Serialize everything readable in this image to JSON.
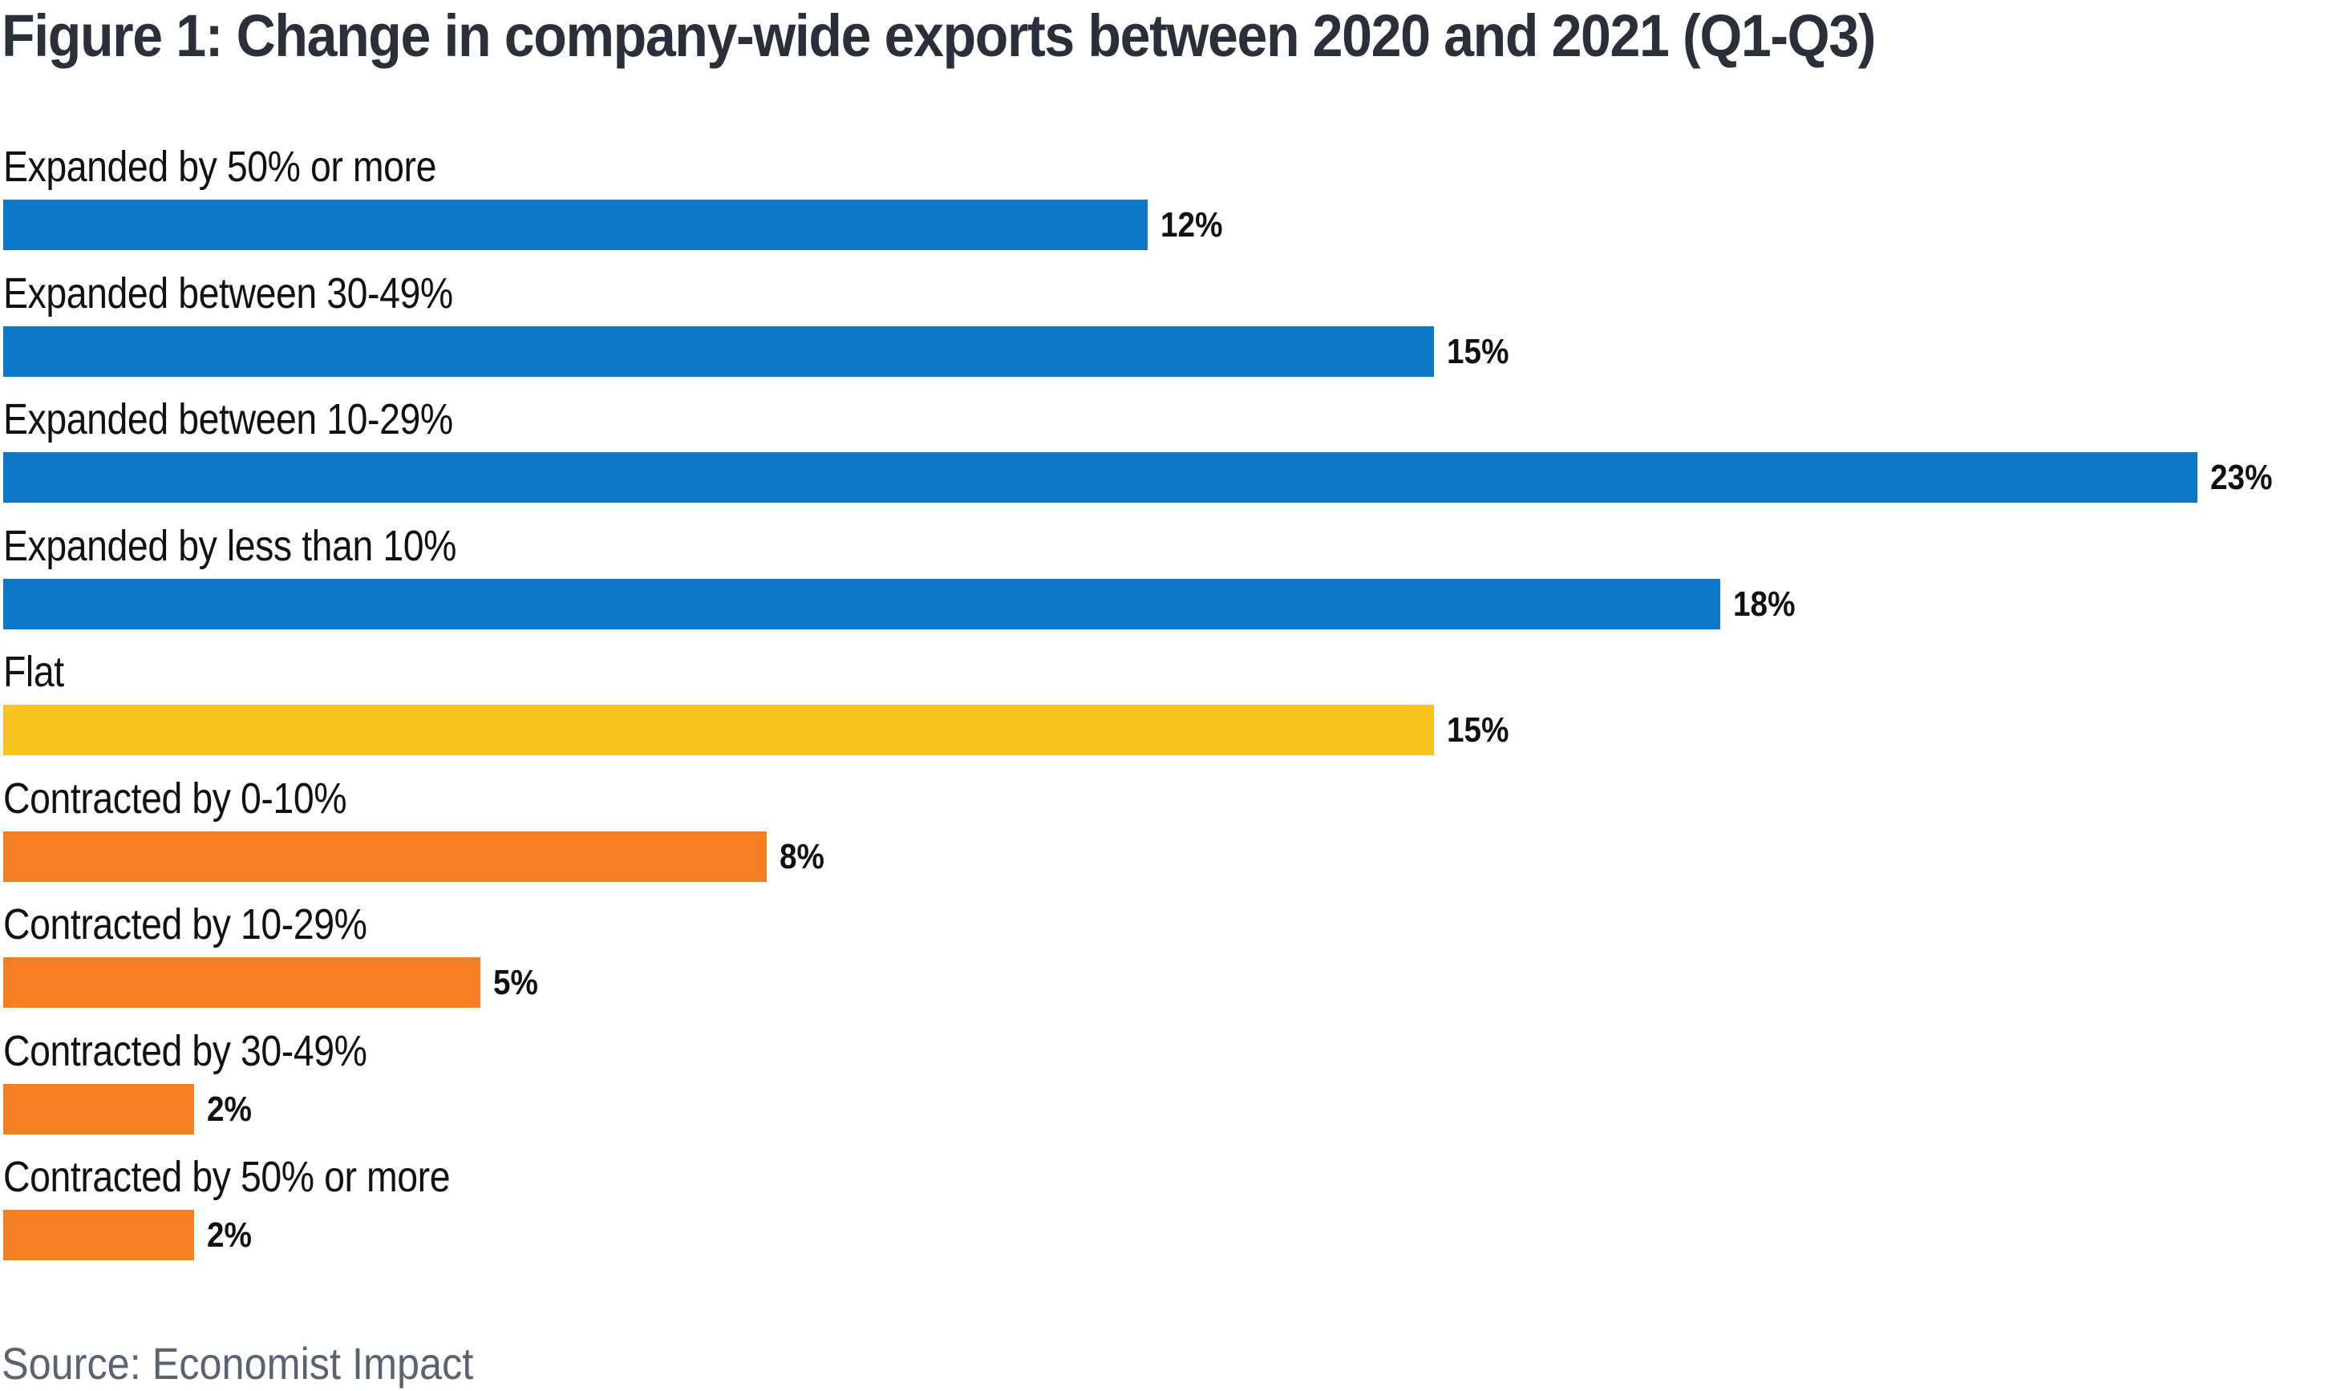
{
  "chart_data": {
    "type": "bar",
    "orientation": "horizontal",
    "title": "Figure 1: Change in company-wide exports between 2020 and 2021 (Q1-Q3)",
    "xlabel": "",
    "ylabel": "",
    "unit": "%",
    "grid": false,
    "legend": "none",
    "xlim": [
      0,
      23
    ],
    "categories": [
      "Expanded by 50% or more",
      "Expanded between 30-49%",
      "Expanded between 10-29%",
      "Expanded by less than 10%",
      "Flat",
      "Contracted by 0-10%",
      "Contracted by 10-29%",
      "Contracted by 30-49%",
      "Contracted by 50% or more"
    ],
    "values": [
      12,
      15,
      23,
      18,
      15,
      8,
      5,
      2,
      2
    ],
    "value_labels": [
      "12%",
      "15%",
      "23%",
      "18%",
      "15%",
      "8%",
      "5%",
      "2%",
      "2%"
    ],
    "groups": [
      "expanded",
      "expanded",
      "expanded",
      "expanded",
      "flat",
      "contracted",
      "contracted",
      "contracted",
      "contracted"
    ],
    "colors": {
      "expanded": "#0d78c8",
      "flat": "#f8c21f",
      "contracted": "#f57f22"
    },
    "source": "Source: Economist Impact"
  }
}
